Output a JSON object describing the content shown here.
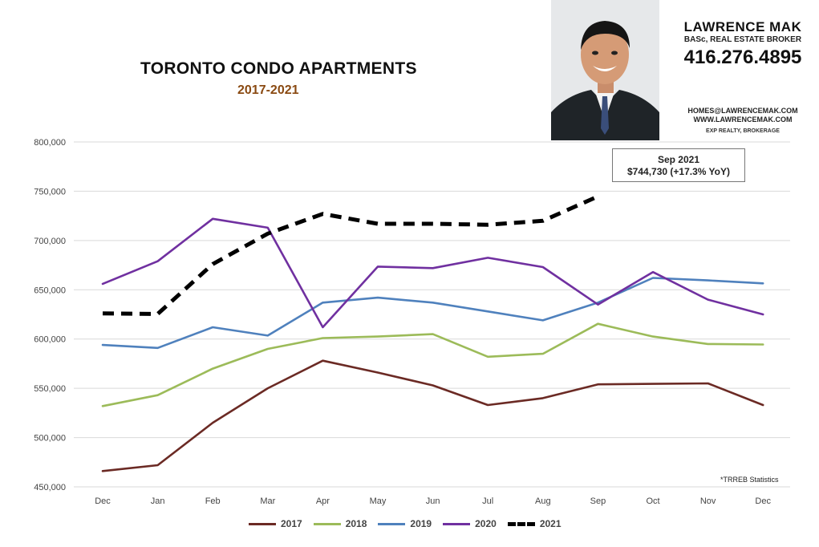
{
  "header": {
    "title": "TORONTO CONDO APARTMENTS",
    "subtitle": "2017-2021"
  },
  "agent": {
    "name": "LAWRENCE MAK",
    "role": "BASc, REAL ESTATE BROKER",
    "phone": "416.276.4895",
    "email": "HOMES@LAWRENCEMAK.COM",
    "website": "WWW.LAWRENCEMAK.COM",
    "brokerage": "EXP REALTY, BROKERAGE"
  },
  "callout": {
    "line1": "Sep 2021",
    "line2": "$744,730  (+17.3%  YoY)"
  },
  "footnote": "*TRREB Statistics",
  "chart_data": {
    "type": "line",
    "title": "TORONTO CONDO APARTMENTS",
    "subtitle": "2017-2021",
    "xlabel": "",
    "ylabel": "",
    "categories": [
      "Dec",
      "Jan",
      "Feb",
      "Mar",
      "Apr",
      "May",
      "Jun",
      "Jul",
      "Aug",
      "Sep",
      "Oct",
      "Nov",
      "Dec"
    ],
    "ylim": [
      450000,
      800000
    ],
    "yticks": [
      450000,
      500000,
      550000,
      600000,
      650000,
      700000,
      750000,
      800000
    ],
    "ytick_labels": [
      "450,000",
      "500,000",
      "550,000",
      "600,000",
      "650,000",
      "700,000",
      "750,000",
      "800,000"
    ],
    "grid": true,
    "legend_position": "bottom",
    "series": [
      {
        "name": "2017",
        "color": "#6b2a24",
        "dashed": false,
        "values": [
          466000,
          472000,
          515000,
          550000,
          578000,
          566000,
          553000,
          533000,
          540000,
          554000,
          554500,
          555000,
          533000
        ]
      },
      {
        "name": "2018",
        "color": "#9cbb59",
        "dashed": false,
        "values": [
          532000,
          543000,
          570000,
          590000,
          601000,
          602500,
          605000,
          582000,
          585000,
          615500,
          602500,
          595000,
          594500
        ]
      },
      {
        "name": "2019",
        "color": "#4f81bd",
        "dashed": false,
        "values": [
          594000,
          591000,
          612000,
          603500,
          637000,
          642000,
          637000,
          628000,
          619000,
          637000,
          662000,
          659500,
          656500
        ]
      },
      {
        "name": "2020",
        "color": "#7030a0",
        "dashed": false,
        "values": [
          656000,
          679000,
          722000,
          713000,
          612000,
          673500,
          672000,
          682500,
          673000,
          635000,
          668000,
          640000,
          625000
        ]
      },
      {
        "name": "2021",
        "color": "#000000",
        "dashed": true,
        "values": [
          626000,
          625500,
          676000,
          707000,
          727000,
          717000,
          717000,
          716000,
          720000,
          744730,
          null,
          null,
          null
        ]
      }
    ]
  }
}
